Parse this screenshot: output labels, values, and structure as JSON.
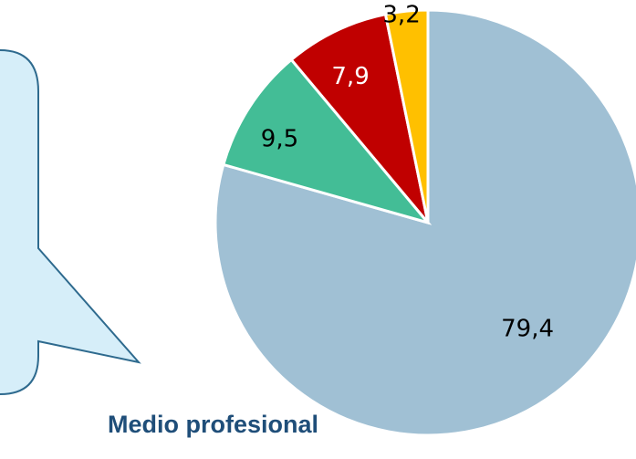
{
  "caption": "Medio profesional",
  "colors": {
    "callout_fill": "#d6eef9",
    "callout_stroke": "#2e6a8e",
    "slice_blue": "#a0c0d4",
    "slice_green": "#43bd96",
    "slice_red": "#c00000",
    "slice_yellow": "#ffc000"
  },
  "chart_data": {
    "type": "pie",
    "title": "",
    "start": "12 o'clock",
    "direction": "clockwise",
    "slices": [
      {
        "label": "79,4",
        "value": 79.4,
        "color": "#a0c0d4",
        "label_color": "#000000"
      },
      {
        "label": "9,5",
        "value": 9.5,
        "color": "#43bd96",
        "label_color": "#000000"
      },
      {
        "label": "7,9",
        "value": 7.9,
        "color": "#c00000",
        "label_color": "#ffffff"
      },
      {
        "label": "3,2",
        "value": 3.2,
        "color": "#ffc000",
        "label_color": "#000000"
      }
    ]
  }
}
